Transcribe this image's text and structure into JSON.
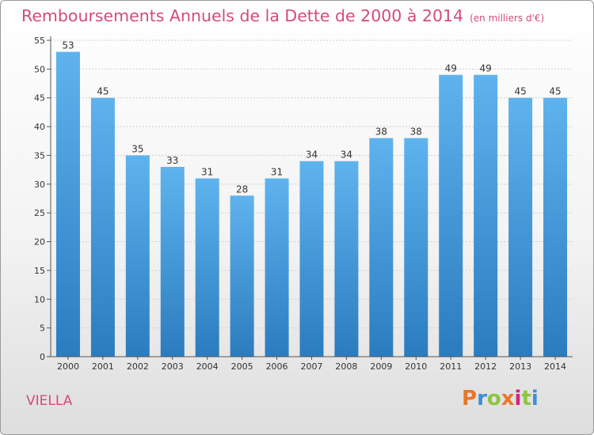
{
  "header": {
    "title": "Remboursements Annuels de la Dette de 2000 à 2014",
    "unit": "(en milliers d'€)"
  },
  "footer": {
    "commune": "VIELLA",
    "logo": "Proxiti"
  },
  "colors": {
    "title": "#d34a7e",
    "bar_top": "#5eb3ee",
    "bar_bottom": "#2b7cbf",
    "logo_letters": [
      "#e8782a",
      "#3d8fd8",
      "#8cc63f",
      "#e8782a",
      "#d6227d",
      "#8cc63f",
      "#3d8fd8"
    ]
  },
  "chart_data": {
    "type": "bar",
    "title": "Remboursements Annuels de la Dette de 2000 à 2014",
    "unit": "(en milliers d'€)",
    "categories": [
      "2000",
      "2001",
      "2002",
      "2003",
      "2004",
      "2005",
      "2006",
      "2007",
      "2008",
      "2009",
      "2010",
      "2011",
      "2012",
      "2013",
      "2014"
    ],
    "values": [
      53,
      45,
      35,
      33,
      31,
      28,
      31,
      34,
      34,
      38,
      38,
      49,
      49,
      45,
      45
    ],
    "ylim": [
      0,
      55
    ],
    "yticks": [
      0,
      5,
      10,
      15,
      20,
      25,
      30,
      35,
      40,
      45,
      50,
      55
    ],
    "grid": true,
    "legend": "none"
  }
}
